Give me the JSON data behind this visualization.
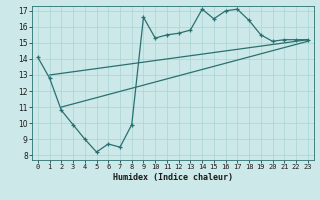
{
  "xlabel": "Humidex (Indice chaleur)",
  "bg_color": "#cce8e8",
  "grid_color": "#a8d4d4",
  "line_color": "#2a7070",
  "xlim": [
    -0.5,
    23.5
  ],
  "ylim": [
    7.7,
    17.3
  ],
  "yticks": [
    8,
    9,
    10,
    11,
    12,
    13,
    14,
    15,
    16,
    17
  ],
  "xticks": [
    0,
    1,
    2,
    3,
    4,
    5,
    6,
    7,
    8,
    9,
    10,
    11,
    12,
    13,
    14,
    15,
    16,
    17,
    18,
    19,
    20,
    21,
    22,
    23
  ],
  "line1_x": [
    0,
    1,
    2,
    3,
    4,
    5,
    6,
    7,
    8,
    9,
    10,
    11,
    12,
    13,
    14,
    15,
    16,
    17,
    18,
    19,
    20,
    21,
    22,
    23
  ],
  "line1_y": [
    14.1,
    12.8,
    10.8,
    9.9,
    9.0,
    8.2,
    8.7,
    8.5,
    9.9,
    16.6,
    15.3,
    15.5,
    15.6,
    15.8,
    17.1,
    16.5,
    17.0,
    17.1,
    16.4,
    15.5,
    15.1,
    15.2,
    15.2,
    15.2
  ],
  "line2_x": [
    1,
    23
  ],
  "line2_y": [
    13.0,
    15.2
  ],
  "line3_x": [
    2,
    23
  ],
  "line3_y": [
    11.0,
    15.1
  ]
}
